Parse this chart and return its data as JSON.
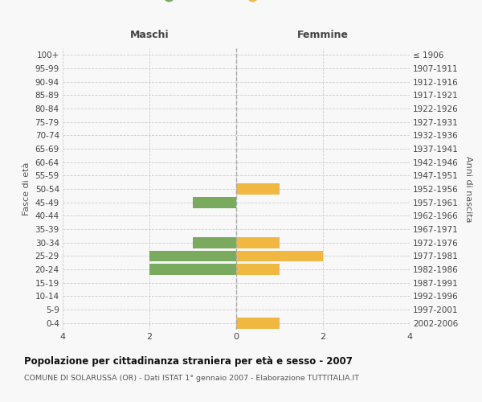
{
  "age_groups": [
    "100+",
    "95-99",
    "90-94",
    "85-89",
    "80-84",
    "75-79",
    "70-74",
    "65-69",
    "60-64",
    "55-59",
    "50-54",
    "45-49",
    "40-44",
    "35-39",
    "30-34",
    "25-29",
    "20-24",
    "15-19",
    "10-14",
    "5-9",
    "0-4"
  ],
  "birth_years": [
    "≤ 1906",
    "1907-1911",
    "1912-1916",
    "1917-1921",
    "1922-1926",
    "1927-1931",
    "1932-1936",
    "1937-1941",
    "1942-1946",
    "1947-1951",
    "1952-1956",
    "1957-1961",
    "1962-1966",
    "1967-1971",
    "1972-1976",
    "1977-1981",
    "1982-1986",
    "1987-1991",
    "1992-1996",
    "1997-2001",
    "2002-2006"
  ],
  "maschi": [
    0,
    0,
    0,
    0,
    0,
    0,
    0,
    0,
    0,
    0,
    0,
    1,
    0,
    0,
    1,
    2,
    2,
    0,
    0,
    0,
    0
  ],
  "femmine": [
    0,
    0,
    0,
    0,
    0,
    0,
    0,
    0,
    0,
    0,
    1,
    0,
    0,
    0,
    1,
    2,
    1,
    0,
    0,
    0,
    1
  ],
  "color_maschi": "#7aaa5e",
  "color_femmine": "#f0b840",
  "xlim": 4,
  "xlabel_maschi": "Maschi",
  "xlabel_femmine": "Femmine",
  "ylabel_left": "Fasce di età",
  "ylabel_right": "Anni di nascita",
  "title": "Popolazione per cittadinanza straniera per età e sesso - 2007",
  "subtitle": "COMUNE DI SOLARUSSA (OR) - Dati ISTAT 1° gennaio 2007 - Elaborazione TUTTITALIA.IT",
  "bg_color": "#f8f8f8",
  "grid_color": "#cccccc",
  "bar_height": 0.82,
  "center_line_color": "#aaaaaa"
}
